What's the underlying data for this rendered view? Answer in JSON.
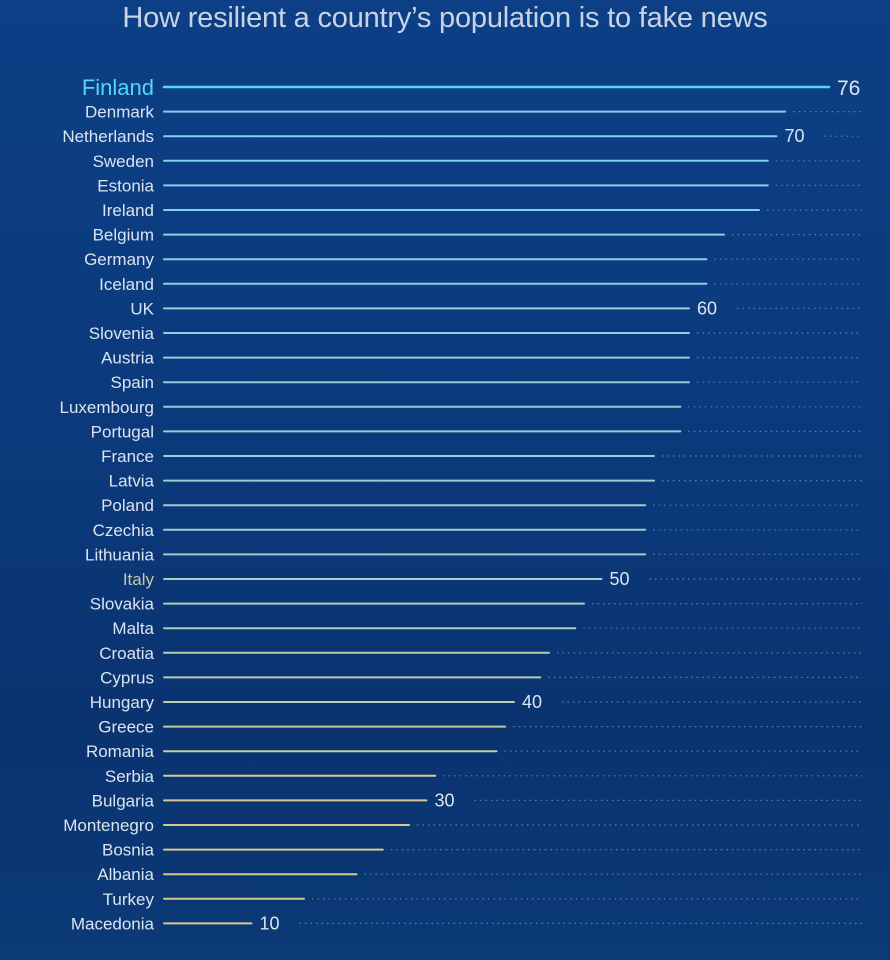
{
  "chart_data": {
    "type": "bar",
    "orientation": "horizontal",
    "subtitle": "How resilient a country’s population is to fake news",
    "highlight": "Finland",
    "categories": [
      "Finland",
      "Denmark",
      "Netherlands",
      "Sweden",
      "Estonia",
      "Ireland",
      "Belgium",
      "Germany",
      "Iceland",
      "UK",
      "Slovenia",
      "Austria",
      "Spain",
      "Luxembourg",
      "Portugal",
      "France",
      "Latvia",
      "Poland",
      "Czechia",
      "Lithuania",
      "Italy",
      "Slovakia",
      "Malta",
      "Croatia",
      "Cyprus",
      "Hungary",
      "Greece",
      "Romania",
      "Serbia",
      "Bulgaria",
      "Montenegro",
      "Bosnia",
      "Albania",
      "Turkey",
      "Macedonia"
    ],
    "values": [
      76,
      71,
      70,
      69,
      69,
      68,
      64,
      62,
      62,
      60,
      60,
      60,
      60,
      59,
      59,
      56,
      56,
      55,
      55,
      55,
      50,
      48,
      47,
      44,
      43,
      40,
      39,
      38,
      31,
      30,
      28,
      25,
      22,
      16,
      10
    ],
    "value_labels": {
      "Finland": "76",
      "Netherlands": "70",
      "UK": "60",
      "Italy": "50",
      "Hungary": "40",
      "Bulgaria": "30",
      "Macedonia": "10"
    },
    "xlim": [
      0,
      76
    ],
    "grid": false,
    "colors": {
      "high": "#7fd0ee",
      "low": "#d6c98f",
      "highlight": "#54d6f5",
      "label": "#dbe4f0",
      "dots": "#5a7fb0"
    }
  }
}
